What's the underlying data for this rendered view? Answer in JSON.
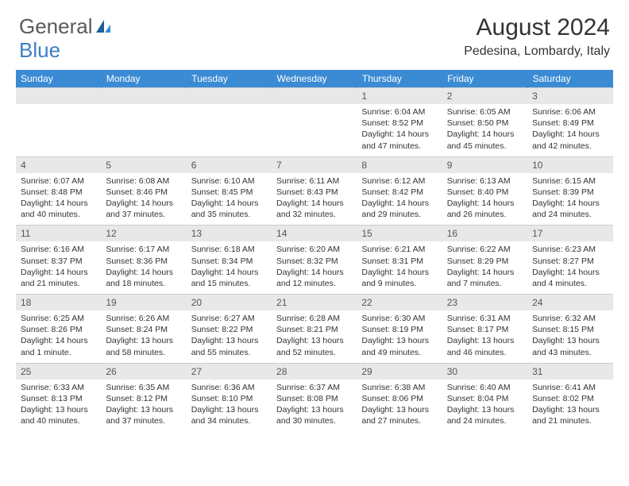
{
  "logo": {
    "word1": "General",
    "word2": "Blue"
  },
  "title": "August 2024",
  "location": "Pedesina, Lombardy, Italy",
  "colors": {
    "header_bg": "#3b8bd4",
    "header_text": "#ffffff",
    "daynum_bg": "#e8e8e8",
    "daynum_text": "#555555",
    "body_text": "#333333",
    "logo_gray": "#5a5a5a",
    "logo_blue": "#3b7fc4"
  },
  "weekdays": [
    "Sunday",
    "Monday",
    "Tuesday",
    "Wednesday",
    "Thursday",
    "Friday",
    "Saturday"
  ],
  "weeks": [
    {
      "nums": [
        "",
        "",
        "",
        "",
        "1",
        "2",
        "3"
      ],
      "cells": [
        null,
        null,
        null,
        null,
        {
          "sunrise": "Sunrise: 6:04 AM",
          "sunset": "Sunset: 8:52 PM",
          "day1": "Daylight: 14 hours",
          "day2": "and 47 minutes."
        },
        {
          "sunrise": "Sunrise: 6:05 AM",
          "sunset": "Sunset: 8:50 PM",
          "day1": "Daylight: 14 hours",
          "day2": "and 45 minutes."
        },
        {
          "sunrise": "Sunrise: 6:06 AM",
          "sunset": "Sunset: 8:49 PM",
          "day1": "Daylight: 14 hours",
          "day2": "and 42 minutes."
        }
      ]
    },
    {
      "nums": [
        "4",
        "5",
        "6",
        "7",
        "8",
        "9",
        "10"
      ],
      "cells": [
        {
          "sunrise": "Sunrise: 6:07 AM",
          "sunset": "Sunset: 8:48 PM",
          "day1": "Daylight: 14 hours",
          "day2": "and 40 minutes."
        },
        {
          "sunrise": "Sunrise: 6:08 AM",
          "sunset": "Sunset: 8:46 PM",
          "day1": "Daylight: 14 hours",
          "day2": "and 37 minutes."
        },
        {
          "sunrise": "Sunrise: 6:10 AM",
          "sunset": "Sunset: 8:45 PM",
          "day1": "Daylight: 14 hours",
          "day2": "and 35 minutes."
        },
        {
          "sunrise": "Sunrise: 6:11 AM",
          "sunset": "Sunset: 8:43 PM",
          "day1": "Daylight: 14 hours",
          "day2": "and 32 minutes."
        },
        {
          "sunrise": "Sunrise: 6:12 AM",
          "sunset": "Sunset: 8:42 PM",
          "day1": "Daylight: 14 hours",
          "day2": "and 29 minutes."
        },
        {
          "sunrise": "Sunrise: 6:13 AM",
          "sunset": "Sunset: 8:40 PM",
          "day1": "Daylight: 14 hours",
          "day2": "and 26 minutes."
        },
        {
          "sunrise": "Sunrise: 6:15 AM",
          "sunset": "Sunset: 8:39 PM",
          "day1": "Daylight: 14 hours",
          "day2": "and 24 minutes."
        }
      ]
    },
    {
      "nums": [
        "11",
        "12",
        "13",
        "14",
        "15",
        "16",
        "17"
      ],
      "cells": [
        {
          "sunrise": "Sunrise: 6:16 AM",
          "sunset": "Sunset: 8:37 PM",
          "day1": "Daylight: 14 hours",
          "day2": "and 21 minutes."
        },
        {
          "sunrise": "Sunrise: 6:17 AM",
          "sunset": "Sunset: 8:36 PM",
          "day1": "Daylight: 14 hours",
          "day2": "and 18 minutes."
        },
        {
          "sunrise": "Sunrise: 6:18 AM",
          "sunset": "Sunset: 8:34 PM",
          "day1": "Daylight: 14 hours",
          "day2": "and 15 minutes."
        },
        {
          "sunrise": "Sunrise: 6:20 AM",
          "sunset": "Sunset: 8:32 PM",
          "day1": "Daylight: 14 hours",
          "day2": "and 12 minutes."
        },
        {
          "sunrise": "Sunrise: 6:21 AM",
          "sunset": "Sunset: 8:31 PM",
          "day1": "Daylight: 14 hours",
          "day2": "and 9 minutes."
        },
        {
          "sunrise": "Sunrise: 6:22 AM",
          "sunset": "Sunset: 8:29 PM",
          "day1": "Daylight: 14 hours",
          "day2": "and 7 minutes."
        },
        {
          "sunrise": "Sunrise: 6:23 AM",
          "sunset": "Sunset: 8:27 PM",
          "day1": "Daylight: 14 hours",
          "day2": "and 4 minutes."
        }
      ]
    },
    {
      "nums": [
        "18",
        "19",
        "20",
        "21",
        "22",
        "23",
        "24"
      ],
      "cells": [
        {
          "sunrise": "Sunrise: 6:25 AM",
          "sunset": "Sunset: 8:26 PM",
          "day1": "Daylight: 14 hours",
          "day2": "and 1 minute."
        },
        {
          "sunrise": "Sunrise: 6:26 AM",
          "sunset": "Sunset: 8:24 PM",
          "day1": "Daylight: 13 hours",
          "day2": "and 58 minutes."
        },
        {
          "sunrise": "Sunrise: 6:27 AM",
          "sunset": "Sunset: 8:22 PM",
          "day1": "Daylight: 13 hours",
          "day2": "and 55 minutes."
        },
        {
          "sunrise": "Sunrise: 6:28 AM",
          "sunset": "Sunset: 8:21 PM",
          "day1": "Daylight: 13 hours",
          "day2": "and 52 minutes."
        },
        {
          "sunrise": "Sunrise: 6:30 AM",
          "sunset": "Sunset: 8:19 PM",
          "day1": "Daylight: 13 hours",
          "day2": "and 49 minutes."
        },
        {
          "sunrise": "Sunrise: 6:31 AM",
          "sunset": "Sunset: 8:17 PM",
          "day1": "Daylight: 13 hours",
          "day2": "and 46 minutes."
        },
        {
          "sunrise": "Sunrise: 6:32 AM",
          "sunset": "Sunset: 8:15 PM",
          "day1": "Daylight: 13 hours",
          "day2": "and 43 minutes."
        }
      ]
    },
    {
      "nums": [
        "25",
        "26",
        "27",
        "28",
        "29",
        "30",
        "31"
      ],
      "cells": [
        {
          "sunrise": "Sunrise: 6:33 AM",
          "sunset": "Sunset: 8:13 PM",
          "day1": "Daylight: 13 hours",
          "day2": "and 40 minutes."
        },
        {
          "sunrise": "Sunrise: 6:35 AM",
          "sunset": "Sunset: 8:12 PM",
          "day1": "Daylight: 13 hours",
          "day2": "and 37 minutes."
        },
        {
          "sunrise": "Sunrise: 6:36 AM",
          "sunset": "Sunset: 8:10 PM",
          "day1": "Daylight: 13 hours",
          "day2": "and 34 minutes."
        },
        {
          "sunrise": "Sunrise: 6:37 AM",
          "sunset": "Sunset: 8:08 PM",
          "day1": "Daylight: 13 hours",
          "day2": "and 30 minutes."
        },
        {
          "sunrise": "Sunrise: 6:38 AM",
          "sunset": "Sunset: 8:06 PM",
          "day1": "Daylight: 13 hours",
          "day2": "and 27 minutes."
        },
        {
          "sunrise": "Sunrise: 6:40 AM",
          "sunset": "Sunset: 8:04 PM",
          "day1": "Daylight: 13 hours",
          "day2": "and 24 minutes."
        },
        {
          "sunrise": "Sunrise: 6:41 AM",
          "sunset": "Sunset: 8:02 PM",
          "day1": "Daylight: 13 hours",
          "day2": "and 21 minutes."
        }
      ]
    }
  ]
}
